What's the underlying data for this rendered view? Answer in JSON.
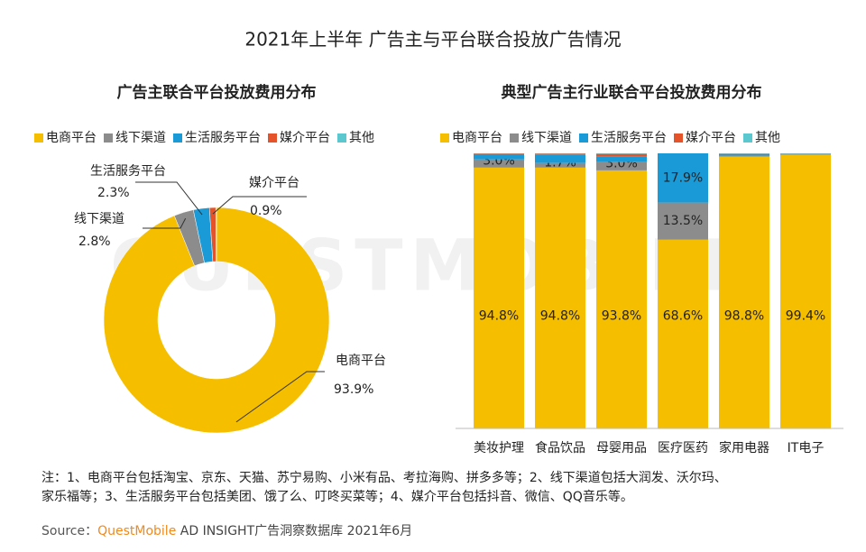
{
  "title": "2021年上半年 广告主与平台联合投放广告情况",
  "watermark": "QUESTMOBILE",
  "chart_data": [
    {
      "type": "pie",
      "donut": true,
      "title": "广告主联合平台投放费用分布",
      "categories": [
        "电商平台",
        "线下渠道",
        "生活服务平台",
        "媒介平台",
        "其他"
      ],
      "values": [
        93.9,
        2.8,
        2.3,
        0.9,
        0.1
      ],
      "value_labels": [
        "93.9%",
        "2.8%",
        "2.3%",
        "0.9%",
        null
      ],
      "colors": [
        "#f5bf00",
        "#8c8c8c",
        "#1a9bd7",
        "#e5532b",
        "#5bc8d0"
      ],
      "legend": "top"
    },
    {
      "type": "stacked_bar",
      "title": "典型广告主行业联合平台投放费用分布",
      "categories": [
        "美妆护理",
        "食品饮品",
        "母婴用品",
        "医疗医药",
        "家用电器",
        "IT电子"
      ],
      "ylim": [
        0,
        100
      ],
      "legend": "top",
      "series": [
        {
          "name": "电商平台",
          "color": "#f5bf00",
          "values": [
            94.8,
            94.8,
            93.8,
            68.6,
            98.8,
            99.4
          ],
          "value_labels": [
            "94.8%",
            "94.8%",
            "93.8%",
            "68.6%",
            "98.8%",
            "99.4%"
          ]
        },
        {
          "name": "线下渠道",
          "color": "#8c8c8c",
          "values": [
            3.0,
            1.7,
            3.0,
            13.5,
            0.4,
            0.2
          ],
          "value_labels": [
            "3.0%",
            "1.7%",
            "3.0%",
            "13.5%",
            null,
            null
          ]
        },
        {
          "name": "生活服务平台",
          "color": "#1a9bd7",
          "values": [
            1.7,
            3.1,
            2.0,
            17.9,
            0.6,
            0.2
          ],
          "value_labels": [
            null,
            null,
            null,
            "17.9%",
            null,
            null
          ]
        },
        {
          "name": "媒介平台",
          "color": "#e5532b",
          "values": [
            0.4,
            0.3,
            1.0,
            0,
            0.1,
            0.1
          ]
        },
        {
          "name": "其他",
          "color": "#5bc8d0",
          "values": [
            0.1,
            0.1,
            0.2,
            0,
            0.1,
            0.1
          ]
        }
      ]
    }
  ],
  "note_lines": [
    "注：1、电商平台包括淘宝、京东、天猫、苏宁易购、小米有品、考拉海购、拼多多等；2、线下渠道包括大润发、沃尔玛、",
    "家乐福等；3、生活服务平台包括美团、饿了么、叮咚买菜等；4、媒介平台包括抖音、微信、QQ音乐等。"
  ],
  "source": {
    "label": "Source：",
    "brand": "QuestMobile",
    "text": " AD INSIGHT广告洞察数据库 2021年6月"
  }
}
